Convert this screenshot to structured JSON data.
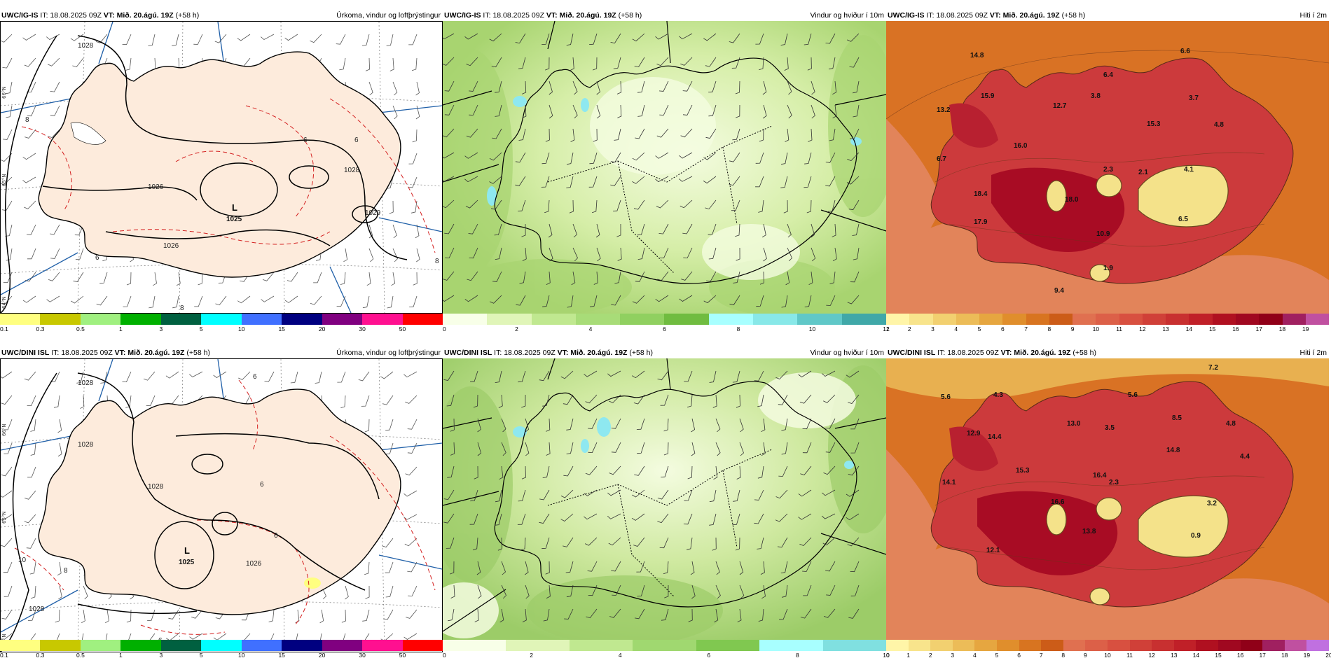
{
  "panels": [
    {
      "id": "igis-precip",
      "model": "UWC/IG-IS",
      "it_label": "IT:",
      "it_value": "18.08.2025 09Z",
      "vt_label": "VT:",
      "vt_value": "Mið. 20.ágú. 19Z",
      "lead": "(+58 h)",
      "title": "Úrkoma, vindur og loftþrýstingur",
      "colorbar": {
        "colors": [
          "#ffff80",
          "#c8c800",
          "#a0f080",
          "#00b000",
          "#006040",
          "#00ffff",
          "#4070ff",
          "#000080",
          "#800080",
          "#ff1090",
          "#ff0000"
        ],
        "labels": [
          "0.1",
          "0.3",
          "0.5",
          "1",
          "3",
          "5",
          "10",
          "15",
          "20",
          "30",
          "50"
        ]
      },
      "pressure_labels": [
        "1028",
        "1026",
        "1026",
        "1028",
        "1029",
        "1025"
      ],
      "temp_labels": [
        "8",
        "6",
        "6",
        "6",
        "8",
        "8"
      ],
      "low_label": "L",
      "low_value": "1025",
      "lat_labels": [
        "66°N",
        "65°N",
        "64°N"
      ]
    },
    {
      "id": "igis-wind",
      "model": "UWC/IG-IS",
      "it_label": "IT:",
      "it_value": "18.08.2025 09Z",
      "vt_label": "VT:",
      "vt_value": "Mið. 20.ágú. 19Z",
      "lead": "(+58 h)",
      "title": "Vindur og hviður í 10m",
      "colorbar": {
        "colors": [
          "#f8ffe8",
          "#e0f5b8",
          "#c0e890",
          "#a8dc78",
          "#90d060",
          "#70bc40",
          "#a8ffff",
          "#88e8e8",
          "#60c8c8",
          "#40a8a8"
        ],
        "labels": [
          "0",
          "2",
          "4",
          "6",
          "8",
          "10",
          "12"
        ]
      }
    },
    {
      "id": "igis-temp",
      "model": "UWC/IG-IS",
      "it_label": "IT:",
      "it_value": "18.08.2025 09Z",
      "vt_label": "VT:",
      "vt_value": "Mið. 20.ágú. 19Z",
      "lead": "(+58 h)",
      "title": "Hiti í 2m",
      "colorbar": {
        "colors": [
          "#fff5a8",
          "#f8e48c",
          "#f2d070",
          "#ecbc58",
          "#e6a640",
          "#e08e2c",
          "#d87420",
          "#cc5c18",
          "#e07050",
          "#dc6048",
          "#d85040",
          "#d04038",
          "#c83030",
          "#c02028",
          "#b01020",
          "#a00820",
          "#900018",
          "#a02060",
          "#c050a0"
        ],
        "labels": [
          "1",
          "2",
          "3",
          "4",
          "5",
          "6",
          "7",
          "8",
          "9",
          "10",
          "11",
          "12",
          "13",
          "14",
          "15",
          "16",
          "17",
          "18",
          "19"
        ]
      },
      "values": [
        "14.8",
        "6.6",
        "6.4",
        "15.9",
        "3.8",
        "3.7",
        "13.2",
        "12.7",
        "15.3",
        "4.8",
        "16.0",
        "6.7",
        "2.3",
        "2.1",
        "4.1",
        "18.4",
        "18.0",
        "6.5",
        "17.9",
        "10.9",
        "1.9",
        "9.4"
      ]
    },
    {
      "id": "dini-precip",
      "model": "UWC/DINI ISL",
      "it_label": "IT:",
      "it_value": "18.08.2025 09Z",
      "vt_label": "VT:",
      "vt_value": "Mið. 20.ágú. 19Z",
      "lead": "(+58 h)",
      "title": "Úrkoma, vindur og loftþrýstingur",
      "colorbar": {
        "colors": [
          "#ffff80",
          "#c8c800",
          "#a0f080",
          "#00b000",
          "#006040",
          "#00ffff",
          "#4070ff",
          "#000080",
          "#800080",
          "#ff1090",
          "#ff0000"
        ],
        "labels": [
          "0.1",
          "0.3",
          "0.5",
          "1",
          "3",
          "5",
          "10",
          "15",
          "20",
          "30",
          "50"
        ]
      },
      "pressure_labels": [
        "1028",
        "1028",
        "1028",
        "1026",
        "1028"
      ],
      "temp_labels": [
        "6",
        "8",
        "10",
        "6",
        "6",
        "6"
      ],
      "low_label": "L",
      "low_value": "1025",
      "lat_labels": [
        "66°N",
        "65°N",
        "64°N"
      ]
    },
    {
      "id": "dini-wind",
      "model": "UWC/DINI ISL",
      "it_label": "IT:",
      "it_value": "18.08.2025 09Z",
      "vt_label": "VT:",
      "vt_value": "Mið. 20.ágú. 19Z",
      "lead": "(+58 h)",
      "title": "Vindur og hviður í 10m",
      "colorbar": {
        "colors": [
          "#f8ffe8",
          "#e0f5b8",
          "#c0e890",
          "#a0d870",
          "#80c850",
          "#a8ffff",
          "#80e0e0"
        ],
        "labels": [
          "0",
          "2",
          "4",
          "6",
          "8",
          "10"
        ]
      }
    },
    {
      "id": "dini-temp",
      "model": "UWC/DINI ISL",
      "it_label": "IT:",
      "it_value": "18.08.2025 09Z",
      "vt_label": "VT:",
      "vt_value": "Mið. 20.ágú. 19Z",
      "lead": "(+58 h)",
      "title": "Hiti í 2m",
      "colorbar": {
        "colors": [
          "#fff5a8",
          "#f8e48c",
          "#f2d070",
          "#ecbc58",
          "#e6a640",
          "#e08e2c",
          "#d87420",
          "#cc5c18",
          "#e07050",
          "#dc6048",
          "#d85040",
          "#d04038",
          "#c83030",
          "#c02028",
          "#b01020",
          "#a00820",
          "#900018",
          "#a02060",
          "#c050a0",
          "#c070e0"
        ],
        "labels": [
          "0",
          "1",
          "2",
          "3",
          "4",
          "5",
          "6",
          "7",
          "8",
          "9",
          "10",
          "11",
          "12",
          "13",
          "14",
          "15",
          "16",
          "17",
          "18",
          "19",
          "20"
        ]
      },
      "values": [
        "7.2",
        "5.6",
        "4.3",
        "5.6",
        "8.5",
        "13.0",
        "3.5",
        "4.8",
        "12.9",
        "14.4",
        "14.8",
        "4.4",
        "15.3",
        "16.4",
        "2.3",
        "14.1",
        "16.6",
        "3.2",
        "13.8",
        "0.9",
        "12.1"
      ]
    }
  ]
}
